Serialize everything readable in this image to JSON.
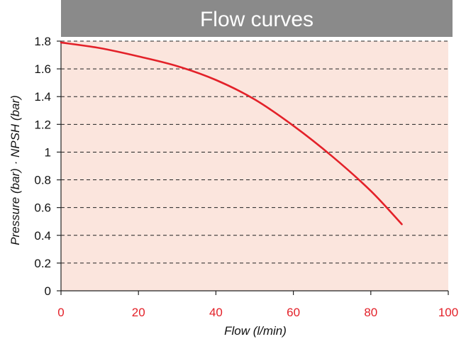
{
  "chart_data": {
    "type": "line",
    "title": "Flow curves",
    "xlabel": "Flow (l/min)",
    "ylabel": "Pressure (bar) · NPSH (bar)",
    "xlim": [
      0,
      100
    ],
    "ylim": [
      0,
      1.8
    ],
    "x_ticks": [
      "0",
      "20",
      "40",
      "60",
      "80",
      "100"
    ],
    "y_ticks": [
      "0",
      "0.2",
      "0.4",
      "0.6",
      "0.8",
      "1",
      "1.2",
      "1.4",
      "1.6",
      "1.8"
    ],
    "grid": "horizontal dashed",
    "series": [
      {
        "x": [
          0,
          10,
          20,
          30,
          40,
          50,
          60,
          70,
          80,
          88
        ],
        "y": [
          1.79,
          1.75,
          1.69,
          1.62,
          1.52,
          1.38,
          1.19,
          0.97,
          0.72,
          0.48
        ]
      }
    ]
  },
  "colors": {
    "title_bar": "#8a8a8a",
    "plot_background": "#fbe5dd",
    "curve": "#e32129",
    "x_tick_labels": "#e32129",
    "grid": "#222222"
  }
}
